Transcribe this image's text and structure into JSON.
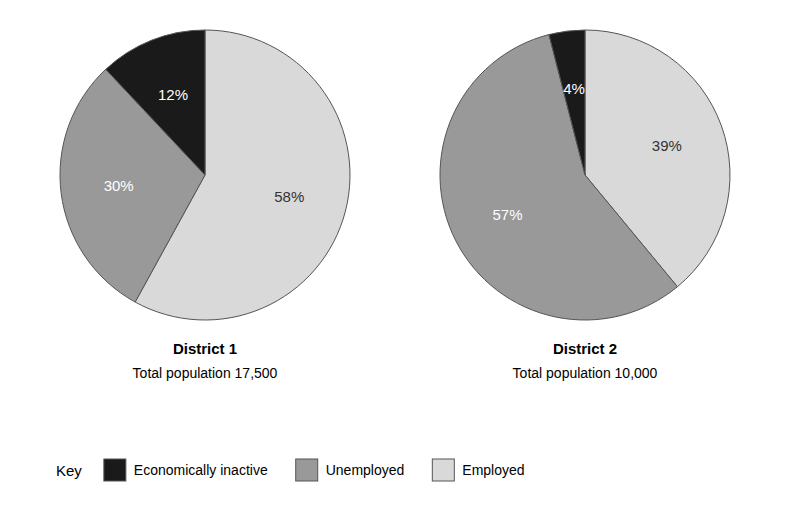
{
  "chart_data": [
    {
      "type": "pie",
      "title": "District 1",
      "subtitle": "Total population 17,500",
      "categories": [
        "Employed",
        "Unemployed",
        "Economically inactive"
      ],
      "values": [
        58,
        30,
        12
      ],
      "value_labels": [
        "58%",
        "30%",
        "12%"
      ],
      "colors": [
        "#d9d9d9",
        "#999999",
        "#1a1a1a"
      ],
      "data_labels": true,
      "legend": "bottom",
      "annotations": [
        "Key"
      ]
    },
    {
      "type": "pie",
      "title": "District 2",
      "subtitle": "Total population 10,000",
      "categories": [
        "Employed",
        "Unemployed",
        "Economically inactive"
      ],
      "values": [
        39,
        57,
        4
      ],
      "value_labels": [
        "39%",
        "57%",
        "4%"
      ],
      "colors": [
        "#d9d9d9",
        "#999999",
        "#1a1a1a"
      ],
      "data_labels": true
    }
  ]
}
